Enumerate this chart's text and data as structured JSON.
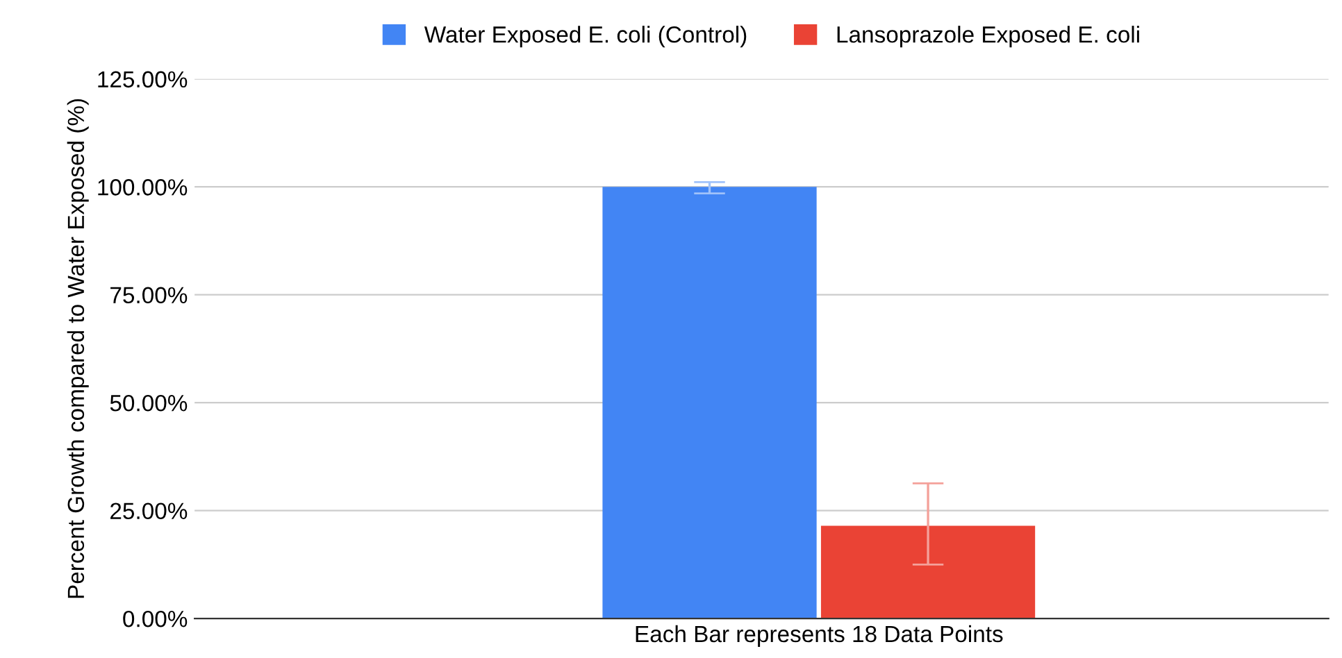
{
  "chart_data": {
    "type": "bar",
    "ylabel": "Percent Growth compared to Water Exposed (%)",
    "categories": [
      "Each Bar represents 18 Data Points"
    ],
    "series": [
      {
        "name": "Water Exposed E. coli (Control)",
        "color": "#4285f4",
        "values": [
          100
        ],
        "errors": [
          [
            98.5,
            101.1
          ]
        ]
      },
      {
        "name": "Lansoprazole Exposed E. coli",
        "color": "#ea4335",
        "values": [
          21.5
        ],
        "errors": [
          [
            12.5,
            31.3
          ]
        ]
      }
    ],
    "ylim": [
      0,
      125
    ],
    "yticks": [
      {
        "value": 0,
        "label": "0.00%"
      },
      {
        "value": 25,
        "label": "25.00%"
      },
      {
        "value": 50,
        "label": "50.00%"
      },
      {
        "value": 75,
        "label": "75.00%"
      },
      {
        "value": 100,
        "label": "100.00%"
      },
      {
        "value": 125,
        "label": "125.00%"
      }
    ],
    "grid": "y",
    "legend": "top"
  }
}
